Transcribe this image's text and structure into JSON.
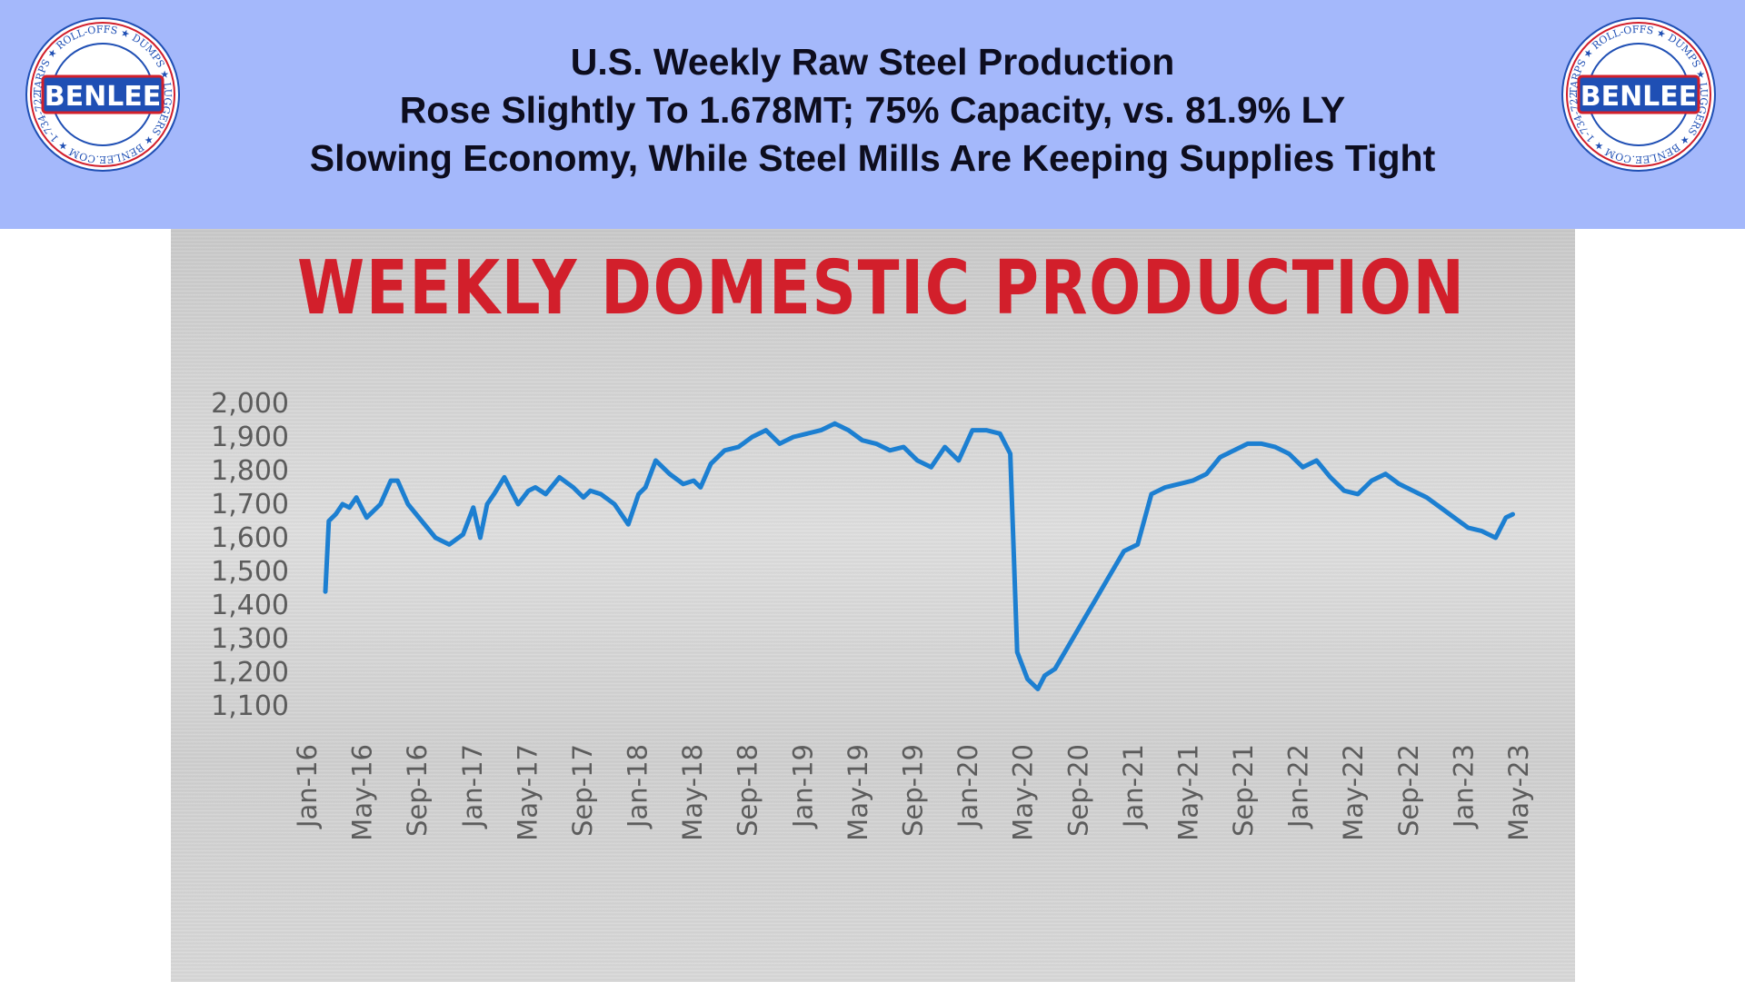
{
  "header": {
    "line1": "U.S. Weekly Raw Steel Production",
    "line2": "Rose Slightly To 1.678MT; 75% Capacity, vs. 81.9% LY",
    "line3": "Slowing Economy, While Steel Mills Are Keeping Supplies Tight",
    "background": "#a4b8fb"
  },
  "logo": {
    "name": "BENLEE",
    "ring_text": "TARPS ★ ROLL-OFFS ★ DUMPS ★ LUGGERS ★ BENLEE.COM ★ 1-734-722-8100 ★ PARTS ★",
    "red": "#d21f2b",
    "blue": "#1f4fb4"
  },
  "chart_data": {
    "type": "line",
    "title": "WEEKLY DOMESTIC PRODUCTION",
    "xlabel": "",
    "ylabel": "",
    "ylim": [
      1100,
      2000
    ],
    "yticks": [
      "2,000",
      "1,900",
      "1,800",
      "1,700",
      "1,600",
      "1,500",
      "1,400",
      "1,300",
      "1,200",
      "1,100"
    ],
    "xticks": [
      "Jan-16",
      "May-16",
      "Sep-16",
      "Jan-17",
      "May-17",
      "Sep-17",
      "Jan-18",
      "May-18",
      "Sep-18",
      "Jan-19",
      "May-19",
      "Sep-19",
      "Jan-20",
      "May-20",
      "Sep-20",
      "Jan-21",
      "May-21",
      "Sep-21",
      "Jan-22",
      "May-22",
      "Sep-22",
      "Jan-23",
      "May-23"
    ],
    "grid": false,
    "legend": "none",
    "line_color": "#1c7fd1",
    "series": [
      {
        "x": [
          "Jan-16",
          "Jan-16",
          "Feb-16",
          "Feb-16",
          "Mar-16",
          "Mar-16",
          "Apr-16",
          "May-16",
          "Jun-16",
          "Jun-16",
          "Jul-16",
          "Aug-16",
          "Sep-16",
          "Oct-16",
          "Nov-16",
          "Dec-16",
          "Dec-16",
          "Jan-17",
          "Jan-17",
          "Feb-17",
          "Mar-17",
          "Apr-17",
          "Apr-17",
          "May-17",
          "Jun-17",
          "Jul-17",
          "Aug-17",
          "Aug-17",
          "Sep-17",
          "Oct-17",
          "Nov-17",
          "Dec-17",
          "Dec-17",
          "Jan-18",
          "Feb-18",
          "Mar-18",
          "Apr-18",
          "Apr-18",
          "May-18",
          "Jun-18",
          "Jul-18",
          "Aug-18",
          "Sep-18",
          "Oct-18",
          "Nov-18",
          "Dec-18",
          "Jan-19",
          "Feb-19",
          "Mar-19",
          "Apr-19",
          "May-19",
          "Jun-19",
          "Jul-19",
          "Aug-19",
          "Sep-19",
          "Oct-19",
          "Nov-19",
          "Dec-19",
          "Jan-20",
          "Feb-20",
          "Mar-20",
          "Mar-20",
          "Apr-20",
          "May-20",
          "May-20",
          "Jun-20",
          "Jul-20",
          "Aug-20",
          "Sep-20",
          "Oct-20",
          "Nov-20",
          "Dec-20",
          "Jan-21",
          "Feb-21",
          "Mar-21",
          "Apr-21",
          "May-21",
          "Jun-21",
          "Jul-21",
          "Aug-21",
          "Sep-21",
          "Oct-21",
          "Nov-21",
          "Dec-21",
          "Jan-22",
          "Feb-22",
          "Mar-22",
          "Apr-22",
          "May-22",
          "Jun-22",
          "Jul-22",
          "Aug-22",
          "Sep-22",
          "Oct-22",
          "Nov-22",
          "Dec-22",
          "Jan-23",
          "Feb-23",
          "Mar-23",
          "Mar-23"
        ],
        "values": [
          1440,
          1650,
          1670,
          1700,
          1690,
          1720,
          1660,
          1700,
          1770,
          1770,
          1700,
          1650,
          1600,
          1580,
          1610,
          1690,
          1600,
          1700,
          1730,
          1780,
          1700,
          1740,
          1750,
          1730,
          1780,
          1750,
          1720,
          1740,
          1730,
          1700,
          1640,
          1730,
          1750,
          1830,
          1790,
          1760,
          1770,
          1750,
          1820,
          1860,
          1870,
          1900,
          1920,
          1880,
          1900,
          1910,
          1920,
          1940,
          1920,
          1890,
          1880,
          1860,
          1870,
          1830,
          1810,
          1870,
          1830,
          1920,
          1920,
          1910,
          1850,
          1260,
          1180,
          1150,
          1190,
          1210,
          1280,
          1350,
          1420,
          1490,
          1560,
          1580,
          1730,
          1750,
          1760,
          1770,
          1790,
          1840,
          1860,
          1880,
          1880,
          1870,
          1850,
          1810,
          1830,
          1780,
          1740,
          1730,
          1770,
          1790,
          1760,
          1740,
          1720,
          1690,
          1660,
          1630,
          1620,
          1600,
          1660,
          1670
        ]
      }
    ]
  }
}
